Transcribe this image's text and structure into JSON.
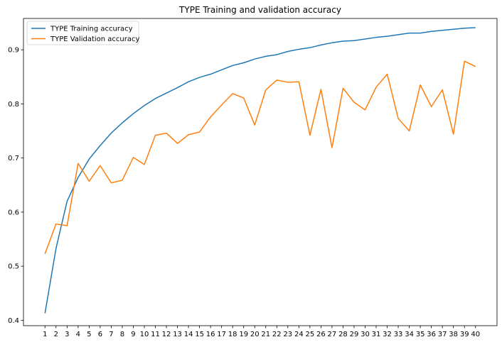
{
  "chart_data": {
    "type": "line",
    "title": "TYPE Training and validation accuracy",
    "xlabel": "",
    "ylabel": "",
    "x": [
      1,
      2,
      3,
      4,
      5,
      6,
      7,
      8,
      9,
      10,
      11,
      12,
      13,
      14,
      15,
      16,
      17,
      18,
      19,
      20,
      21,
      22,
      23,
      24,
      25,
      26,
      27,
      28,
      29,
      30,
      31,
      32,
      33,
      34,
      35,
      36,
      37,
      38,
      39,
      40
    ],
    "xlim": [
      -0.95,
      41.95
    ],
    "ylim": [
      0.39,
      0.958
    ],
    "yticks": [
      0.4,
      0.5,
      0.6,
      0.7,
      0.8,
      0.9
    ],
    "ytick_labels": [
      "0.4",
      "0.5",
      "0.6",
      "0.7",
      "0.8",
      "0.9"
    ],
    "grid": false,
    "legend_position": "top-left",
    "series": [
      {
        "name": "TYPE Training accuracy",
        "color": "#1f77b4",
        "values": [
          0.413,
          0.533,
          0.62,
          0.664,
          0.698,
          0.723,
          0.746,
          0.765,
          0.782,
          0.797,
          0.81,
          0.82,
          0.83,
          0.841,
          0.849,
          0.855,
          0.863,
          0.871,
          0.876,
          0.883,
          0.888,
          0.891,
          0.897,
          0.901,
          0.904,
          0.909,
          0.913,
          0.916,
          0.917,
          0.92,
          0.923,
          0.925,
          0.928,
          0.931,
          0.931,
          0.934,
          0.936,
          0.938,
          0.94,
          0.941
        ]
      },
      {
        "name": "TYPE Validation accuracy",
        "color": "#ff7f0e",
        "values": [
          0.523,
          0.578,
          0.575,
          0.69,
          0.657,
          0.686,
          0.654,
          0.659,
          0.701,
          0.688,
          0.742,
          0.746,
          0.727,
          0.743,
          0.748,
          0.776,
          0.798,
          0.819,
          0.811,
          0.761,
          0.826,
          0.844,
          0.84,
          0.841,
          0.742,
          0.827,
          0.719,
          0.829,
          0.803,
          0.789,
          0.831,
          0.855,
          0.773,
          0.75,
          0.835,
          0.795,
          0.826,
          0.744,
          0.879,
          0.869
        ]
      }
    ]
  }
}
